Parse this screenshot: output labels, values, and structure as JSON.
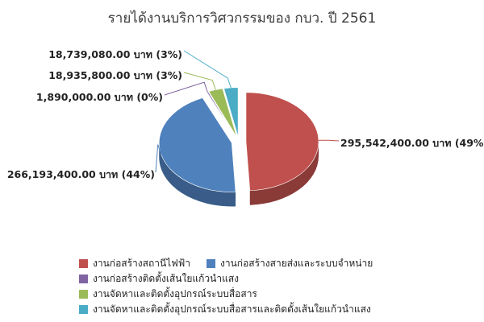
{
  "chart_data": {
    "type": "pie",
    "title": "รายได้งานบริการวิศวกรรมของ กบว. ปี 2561",
    "series": [
      {
        "name": "งานก่อสร้างสถานีไฟฟ้า",
        "value": 295542400,
        "label": "295,542,400.00 บาท (49%)",
        "color": "#c0504d"
      },
      {
        "name": "งานก่อสร้างสายส่งและระบบจำหน่าย",
        "value": 266193400,
        "label": "266,193,400.00 บาท (44%)",
        "color": "#4f81bd"
      },
      {
        "name": "งานก่อสร้างติดตั้งเส้นใยแก้วนำแสง",
        "value": 1890000,
        "label": "1,890,000.00 บาท (0%)",
        "color": "#8064a2"
      },
      {
        "name": "งานจัดหาและติดตั้งอุปกรณ์ระบบสื่อสาร",
        "value": 18935800,
        "label": "18,935,800.00 บาท (3%)",
        "color": "#9bbb59"
      },
      {
        "name": "งานจัดหาและติดตั้งอุปกรณ์ระบบสื่อสารและติดตั้งเส้นใยแก้วนำแสง",
        "value": 18739080,
        "label": "18,739,080.00 บาท (3%)",
        "color": "#4bacc6"
      }
    ],
    "legend_position": "bottom"
  }
}
